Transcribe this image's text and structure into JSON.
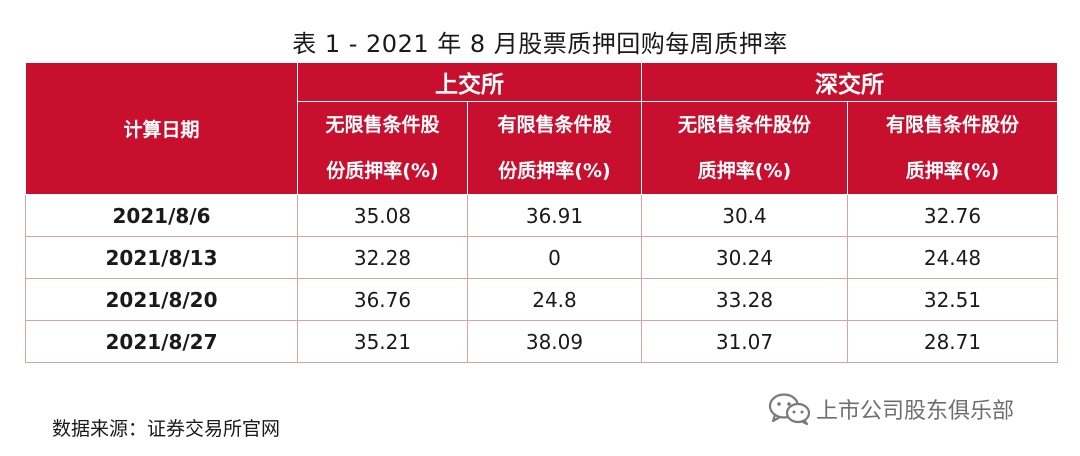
{
  "title": "表 1 - 2021 年 8 月股票质押回购每周质押率",
  "table": {
    "date_header": "计算日期",
    "groups": [
      "上交所",
      "深交所"
    ],
    "sub_headers": [
      [
        "无限售条件股",
        "份质押率(%)"
      ],
      [
        "有限售条件股",
        "份质押率(%)"
      ],
      [
        "无限售条件股份",
        "质押率(%)"
      ],
      [
        "有限售条件股份",
        "质押率(%)"
      ]
    ],
    "rows": [
      [
        "2021/8/6",
        "35.08",
        "36.91",
        "30.4",
        "32.76"
      ],
      [
        "2021/8/13",
        "32.28",
        "0",
        "30.24",
        "24.48"
      ],
      [
        "2021/8/20",
        "36.76",
        "24.8",
        "33.28",
        "32.51"
      ],
      [
        "2021/8/27",
        "35.21",
        "38.09",
        "31.07",
        "28.71"
      ]
    ]
  },
  "source": "数据来源：证券交易所官网",
  "watermark": {
    "text": "上市公司股东俱乐部",
    "icon": "wechat-icon"
  },
  "colors": {
    "header_red": "#c8102e",
    "border": "#d9a3a3"
  }
}
